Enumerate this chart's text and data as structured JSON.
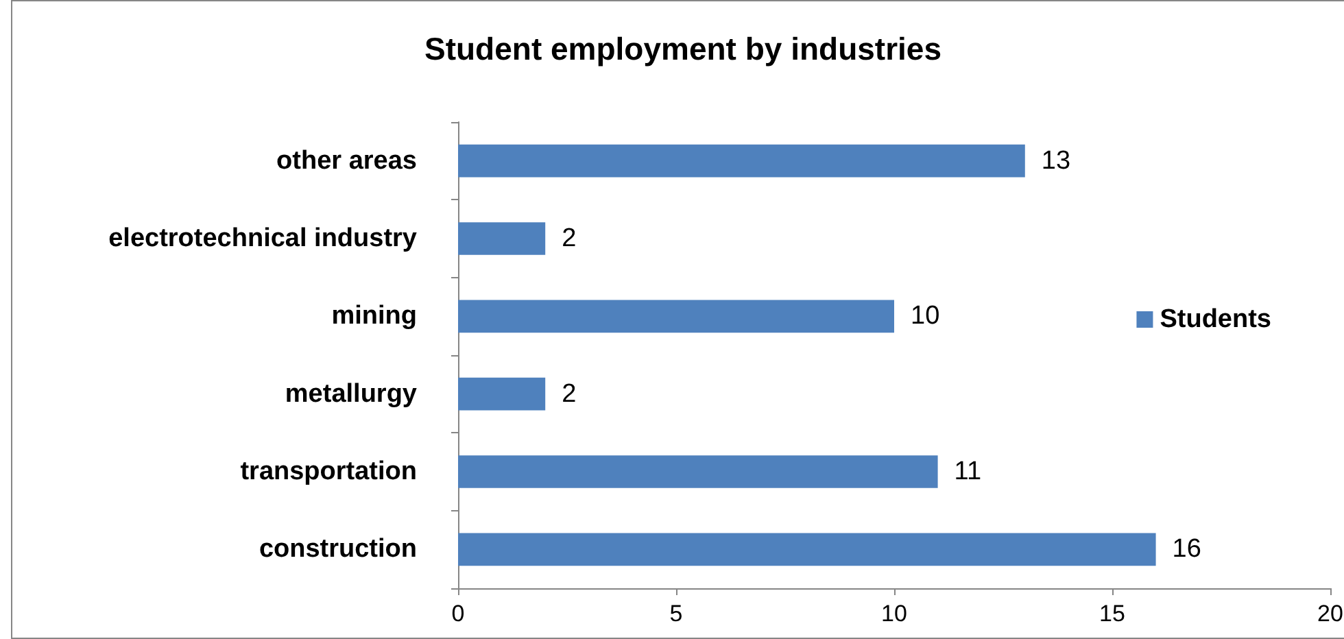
{
  "chart_data": {
    "type": "bar",
    "orientation": "horizontal",
    "title": "Student employment by industries",
    "categories": [
      "other areas",
      "electrotechnical industry",
      "mining",
      "metallurgy",
      "transportation",
      "construction"
    ],
    "series": [
      {
        "name": "Students",
        "color": "#4f81bd",
        "values": [
          13,
          2,
          10,
          2,
          11,
          16
        ]
      }
    ],
    "xlim": [
      0,
      20
    ],
    "xticks": [
      0,
      5,
      10,
      15,
      20
    ],
    "data_labels": true,
    "legend": "right",
    "grid": false
  }
}
